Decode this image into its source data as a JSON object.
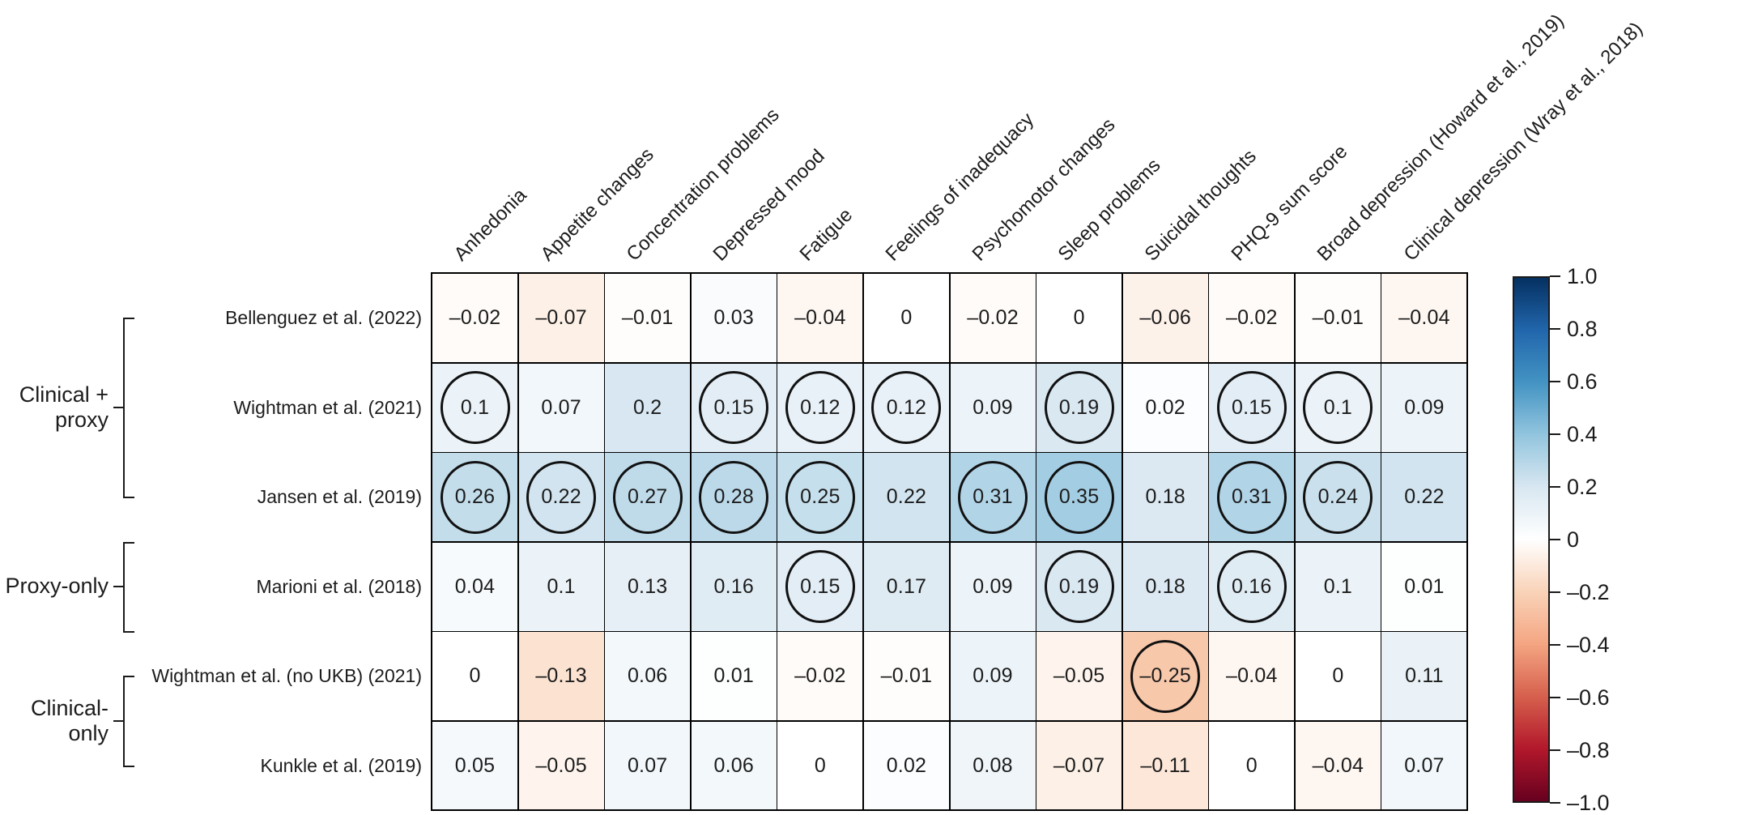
{
  "chart_data": {
    "type": "heatmap",
    "title": "",
    "xlabel": "",
    "ylabel": "",
    "grid": "on",
    "legend_position": "right-colorbar",
    "columns": [
      "Anhedonia",
      "Appetite changes",
      "Concentration problems",
      "Depressed mood",
      "Fatigue",
      "Feelings of inadequacy",
      "Psychomotor changes",
      "Sleep problems",
      "Suicidal thoughts",
      "PHQ-9 sum score",
      "Broad depression (Howard et al., 2019)",
      "Clinical depression (Wray et al., 2018)"
    ],
    "rows": [
      {
        "label": "Bellenguez et al. (2022)",
        "values": [
          -0.02,
          -0.07,
          -0.01,
          0.03,
          -0.04,
          0,
          -0.02,
          0,
          -0.06,
          -0.02,
          -0.01,
          -0.04
        ],
        "circled": []
      },
      {
        "label": "Wightman et al. (2021)",
        "values": [
          0.1,
          0.07,
          0.2,
          0.15,
          0.12,
          0.12,
          0.09,
          0.19,
          0.02,
          0.15,
          0.1,
          0.09
        ],
        "circled": [
          0,
          3,
          4,
          5,
          7,
          9,
          10
        ]
      },
      {
        "label": "Jansen et al. (2019)",
        "values": [
          0.26,
          0.22,
          0.27,
          0.28,
          0.25,
          0.22,
          0.31,
          0.35,
          0.18,
          0.31,
          0.24,
          0.22
        ],
        "circled": [
          0,
          1,
          2,
          3,
          4,
          6,
          7,
          9,
          10
        ]
      },
      {
        "label": "Marioni et al. (2018)",
        "values": [
          0.04,
          0.1,
          0.13,
          0.16,
          0.15,
          0.17,
          0.09,
          0.19,
          0.18,
          0.16,
          0.1,
          0.01
        ],
        "circled": [
          4,
          7,
          9
        ]
      },
      {
        "label": "Wightman et al. (no UKB) (2021)",
        "values": [
          0,
          -0.13,
          0.06,
          0.01,
          -0.02,
          -0.01,
          0.09,
          -0.05,
          -0.25,
          -0.04,
          0,
          0.11
        ],
        "circled": [
          8
        ]
      },
      {
        "label": "Kunkle et al. (2019)",
        "values": [
          0.05,
          -0.05,
          0.07,
          0.06,
          0,
          0.02,
          0.08,
          -0.07,
          -0.11,
          0,
          -0.04,
          0.07
        ],
        "circled": []
      }
    ],
    "row_groups": [
      {
        "lines": [
          "Clinical +",
          "proxy"
        ],
        "first_row": 0,
        "last_row": 2
      },
      {
        "lines": [
          "Proxy-only"
        ],
        "first_row": 3,
        "last_row": 3
      },
      {
        "lines": [
          "Clinical-",
          "only"
        ],
        "first_row": 4,
        "last_row": 5
      }
    ],
    "colorbar": {
      "min": -1,
      "max": 1,
      "tick_labels": [
        "1.0",
        "0.8",
        "0.6",
        "0.4",
        "0.2",
        "0",
        "–0.2",
        "–0.4",
        "–0.6",
        "–0.8",
        "–1.0"
      ],
      "colormap_stops": [
        {
          "p": 0.0,
          "c": "#67001f"
        },
        {
          "p": 0.1,
          "c": "#b2182b"
        },
        {
          "p": 0.2,
          "c": "#d6604d"
        },
        {
          "p": 0.3,
          "c": "#f4a582"
        },
        {
          "p": 0.4,
          "c": "#f9d3b8"
        },
        {
          "p": 0.5,
          "c": "#ffffff"
        },
        {
          "p": 0.6,
          "c": "#d8e7f1"
        },
        {
          "p": 0.7,
          "c": "#92c5de"
        },
        {
          "p": 0.8,
          "c": "#4393c3"
        },
        {
          "p": 0.9,
          "c": "#2166ac"
        },
        {
          "p": 1.0,
          "c": "#053061"
        }
      ],
      "line_color": "#1a1a1a"
    },
    "circle_meaning_color": "#111111"
  }
}
